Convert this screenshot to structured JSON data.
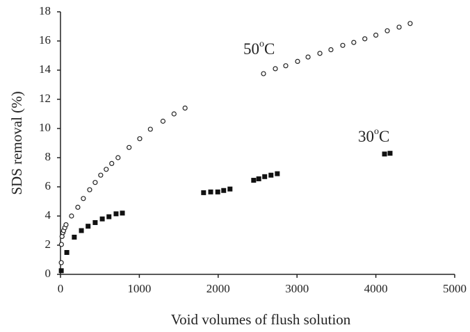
{
  "chart_data": {
    "type": "scatter",
    "xlabel": "Void volumes of flush solution",
    "ylabel": "SDS removal (%)",
    "xlim": [
      0,
      5000
    ],
    "xticks": [
      0,
      1000,
      2000,
      3000,
      4000,
      5000
    ],
    "ylim": [
      0,
      18
    ],
    "yticks": [
      0,
      2,
      4,
      6,
      8,
      10,
      12,
      14,
      16,
      18
    ],
    "series": [
      {
        "marker": "circle",
        "color": "#222222",
        "x": [
          10,
          12,
          20,
          30,
          40,
          55,
          70,
          140,
          220,
          290,
          370,
          440,
          510,
          580,
          650,
          730,
          870,
          1005,
          1140,
          1300,
          1440,
          1580,
          2575,
          2725,
          2857,
          3007,
          3140,
          3290,
          3430,
          3580,
          3720,
          3860,
          4000,
          4145,
          4295,
          4435
        ],
        "values": [
          0.8,
          2.05,
          2.6,
          2.86,
          3.0,
          3.2,
          3.4,
          4.0,
          4.6,
          5.2,
          5.8,
          6.3,
          6.8,
          7.2,
          7.6,
          8.0,
          8.7,
          9.3,
          9.95,
          10.5,
          11.0,
          11.4,
          13.76,
          14.1,
          14.3,
          14.6,
          14.9,
          15.15,
          15.4,
          15.7,
          15.9,
          16.15,
          16.4,
          16.7,
          16.95,
          17.2
        ]
      },
      {
        "marker": "square",
        "color": "#111111",
        "x": [
          10,
          80,
          175,
          265,
          350,
          440,
          530,
          615,
          705,
          785,
          1815,
          1905,
          1995,
          2070,
          2150,
          2450,
          2515,
          2590,
          2670,
          2750,
          4110,
          4180
        ],
        "values": [
          0.25,
          1.5,
          2.55,
          3.0,
          3.3,
          3.55,
          3.8,
          3.95,
          4.15,
          4.2,
          5.6,
          5.65,
          5.65,
          5.75,
          5.85,
          6.45,
          6.55,
          6.7,
          6.8,
          6.9,
          8.25,
          8.3
        ]
      }
    ],
    "annotations": [
      {
        "label": "50",
        "superscript": "o",
        "unit": "C"
      },
      {
        "label": "30",
        "superscript": "o",
        "unit": "C"
      }
    ]
  }
}
